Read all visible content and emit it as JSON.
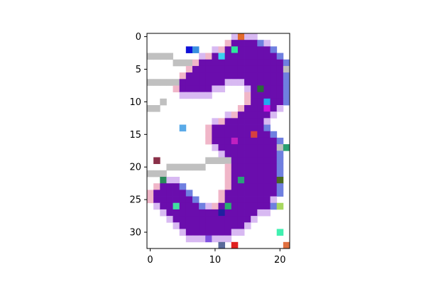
{
  "chart_data": {
    "type": "heatmap",
    "title": "",
    "xlabel": "",
    "ylabel": "",
    "xlim": [
      -0.5,
      21.5
    ],
    "ylim": [
      32.5,
      -0.5
    ],
    "x_ticks": [
      0,
      10,
      20
    ],
    "y_ticks": [
      0,
      5,
      10,
      15,
      20,
      25,
      30
    ],
    "x_tick_labels": [
      "0",
      "10",
      "20"
    ],
    "y_tick_labels": [
      "0",
      "5",
      "10",
      "15",
      "20",
      "25",
      "30"
    ],
    "grid": false,
    "legend": "none",
    "colors": {
      "fill": "#6a0dad",
      "background": "#ffffff",
      "edge_light": "#d8b9f2",
      "edge_blue": "#6f7fe0",
      "edge_pink": "#f0b6c8",
      "stripe_gray": "#c0c0c0"
    },
    "description": "22 x 33 pixel grid showing a handwritten digit 3 with scattered colored noise pixels",
    "shape_row_ranges": [
      [
        1,
        13,
        16
      ],
      [
        2,
        12,
        18
      ],
      [
        3,
        10,
        19
      ],
      [
        4,
        8,
        20
      ],
      [
        5,
        7,
        20
      ],
      [
        6,
        6,
        20
      ],
      [
        7,
        5,
        11
      ],
      [
        7,
        15,
        20
      ],
      [
        8,
        5,
        9
      ],
      [
        8,
        16,
        20
      ],
      [
        9,
        16,
        20
      ],
      [
        10,
        16,
        20
      ],
      [
        11,
        15,
        19
      ],
      [
        12,
        14,
        18
      ],
      [
        13,
        12,
        17
      ],
      [
        14,
        10,
        17
      ],
      [
        15,
        10,
        18
      ],
      [
        16,
        10,
        19
      ],
      [
        17,
        11,
        19
      ],
      [
        18,
        12,
        19
      ],
      [
        19,
        13,
        19
      ],
      [
        20,
        13,
        19
      ],
      [
        21,
        13,
        19
      ],
      [
        22,
        13,
        19
      ],
      [
        23,
        2,
        4
      ],
      [
        23,
        13,
        19
      ],
      [
        24,
        1,
        5
      ],
      [
        24,
        12,
        19
      ],
      [
        25,
        1,
        6
      ],
      [
        25,
        12,
        18
      ],
      [
        26,
        2,
        7
      ],
      [
        26,
        11,
        18
      ],
      [
        27,
        3,
        16
      ],
      [
        28,
        4,
        15
      ],
      [
        29,
        5,
        14
      ],
      [
        30,
        6,
        12
      ]
    ],
    "gray_pixels": [
      [
        0,
        3
      ],
      [
        1,
        3
      ],
      [
        2,
        3
      ],
      [
        3,
        3
      ],
      [
        4,
        4
      ],
      [
        5,
        4
      ],
      [
        6,
        4
      ],
      [
        0,
        7
      ],
      [
        1,
        7
      ],
      [
        2,
        7
      ],
      [
        3,
        7
      ],
      [
        4,
        7
      ],
      [
        0,
        11
      ],
      [
        1,
        11
      ],
      [
        2,
        10
      ],
      [
        9,
        19
      ],
      [
        10,
        19
      ],
      [
        11,
        19
      ],
      [
        12,
        19
      ],
      [
        8,
        20
      ],
      [
        7,
        20
      ],
      [
        6,
        20
      ],
      [
        5,
        20
      ],
      [
        4,
        20
      ],
      [
        3,
        20
      ],
      [
        0,
        21
      ],
      [
        1,
        21
      ],
      [
        2,
        21
      ],
      [
        20,
        17
      ],
      [
        21,
        17
      ],
      [
        11,
        6
      ],
      [
        12,
        6
      ],
      [
        13,
        6
      ],
      [
        21,
        5
      ]
    ],
    "colored_pixels": [
      [
        14,
        0,
        "#e26a2c"
      ],
      [
        6,
        2,
        "#1010d8"
      ],
      [
        7,
        2,
        "#3a8fe0"
      ],
      [
        13,
        2,
        "#2ce89a"
      ],
      [
        11,
        3,
        "#3ad0f0"
      ],
      [
        17,
        8,
        "#2a6a3a"
      ],
      [
        18,
        10,
        "#22a8f0"
      ],
      [
        18,
        11,
        "#d010e0"
      ],
      [
        5,
        14,
        "#5aaae8"
      ],
      [
        16,
        15,
        "#d84040"
      ],
      [
        13,
        16,
        "#c020c0"
      ],
      [
        21,
        17,
        "#2aa070"
      ],
      [
        1,
        19,
        "#8a3048"
      ],
      [
        2,
        22,
        "#2a8a5a"
      ],
      [
        14,
        22,
        "#2aa07a"
      ],
      [
        20,
        22,
        "#4a6a20"
      ],
      [
        4,
        26,
        "#40e0a0"
      ],
      [
        12,
        26,
        "#2ab070"
      ],
      [
        11,
        27,
        "#2020a0"
      ],
      [
        20,
        26,
        "#a8d860"
      ],
      [
        20,
        30,
        "#40f0b0"
      ],
      [
        9,
        31,
        "#8050e0"
      ],
      [
        11,
        32,
        "#5a6a9a"
      ],
      [
        13,
        32,
        "#e02020"
      ],
      [
        21,
        32,
        "#e07040"
      ]
    ]
  }
}
